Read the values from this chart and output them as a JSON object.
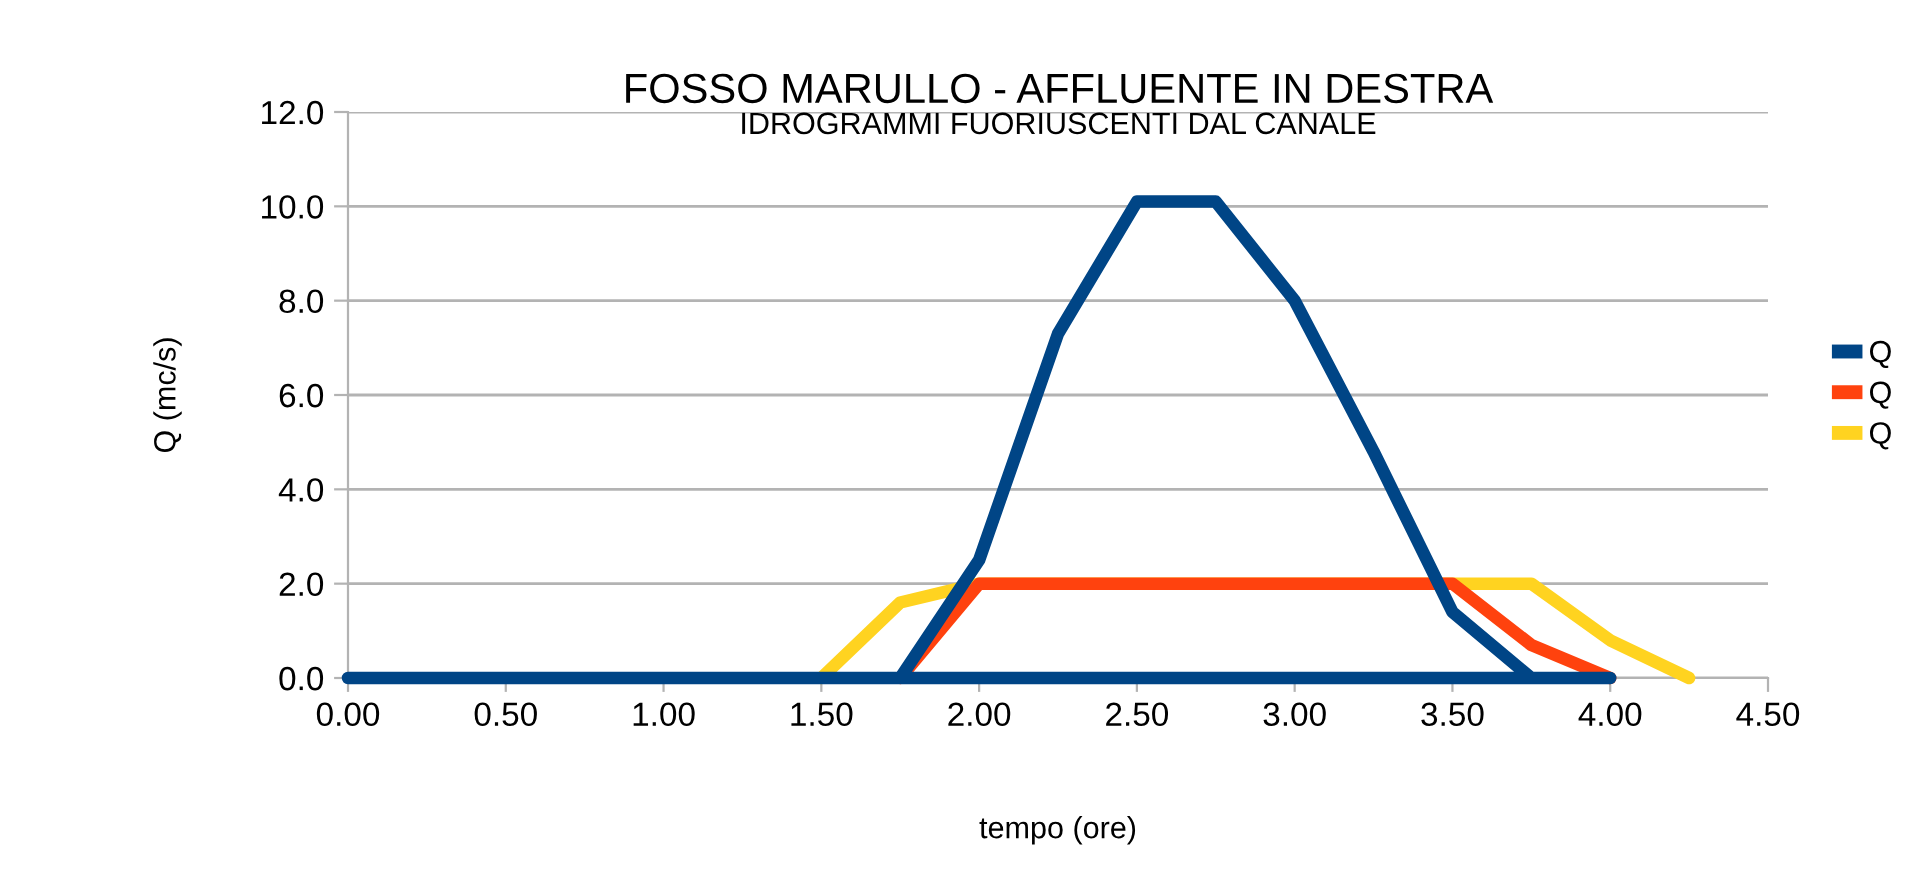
{
  "chart_data": {
    "type": "line",
    "title": "FOSSO MARULLO - AFFLUENTE IN DESTRA",
    "subtitle": "IDROGRAMMI FUORIUSCENTI DAL CANALE",
    "xlabel": "tempo (ore)",
    "ylabel": "Q (mc/s)",
    "series": [
      {
        "name": "Q",
        "color": "#004586",
        "x": [
          0.0,
          0.25,
          0.5,
          0.75,
          1.0,
          1.25,
          1.5,
          1.75,
          2.0,
          2.25,
          2.5,
          2.75,
          3.0,
          3.25,
          3.5,
          3.75,
          4.0,
          1.75
        ],
        "values": [
          0,
          0,
          0,
          0,
          0,
          0,
          0,
          0,
          2.5,
          7.3,
          10.1,
          10.1,
          8.0,
          4.8,
          1.4,
          0,
          0,
          0
        ]
      },
      {
        "name": "Q",
        "color": "#ff420e",
        "x": [
          1.75,
          2.0,
          2.25,
          2.5,
          2.75,
          3.0,
          3.25,
          3.5,
          3.75,
          4.0
        ],
        "values": [
          0,
          2.0,
          2.0,
          2.0,
          2.0,
          2.0,
          2.0,
          2.0,
          0.7,
          0
        ]
      },
      {
        "name": "Q",
        "color": "#ffd320",
        "x": [
          1.5,
          1.75,
          2.0,
          2.25,
          2.5,
          2.75,
          3.0,
          3.25,
          3.5,
          3.75,
          4.0,
          4.25
        ],
        "values": [
          0,
          1.6,
          2.0,
          2.0,
          2.0,
          2.0,
          2.0,
          2.0,
          2.0,
          2.0,
          0.8,
          0
        ]
      }
    ],
    "xlim": [
      0,
      4.5
    ],
    "xticks": [
      {
        "value": 0,
        "label": "0.00"
      },
      {
        "value": 0.5,
        "label": "0.50"
      },
      {
        "value": 1,
        "label": "1.00"
      },
      {
        "value": 1.5,
        "label": "1.50"
      },
      {
        "value": 2,
        "label": "2.00"
      },
      {
        "value": 2.5,
        "label": "2.50"
      },
      {
        "value": 3,
        "label": "3.00"
      },
      {
        "value": 3.5,
        "label": "3.50"
      },
      {
        "value": 4,
        "label": "4.00"
      },
      {
        "value": 4.5,
        "label": "4.50"
      }
    ],
    "ylim": [
      0,
      12
    ],
    "yticks": [
      {
        "value": 0,
        "label": "0.0"
      },
      {
        "value": 2,
        "label": "2.0"
      },
      {
        "value": 4,
        "label": "4.0"
      },
      {
        "value": 6,
        "label": "6.0"
      },
      {
        "value": 8,
        "label": "8.0"
      },
      {
        "value": 10,
        "label": "10.0"
      },
      {
        "value": 12,
        "label": "12.0"
      }
    ],
    "grid": "y",
    "legend": "right",
    "marker": "none",
    "line_style": "solid"
  }
}
